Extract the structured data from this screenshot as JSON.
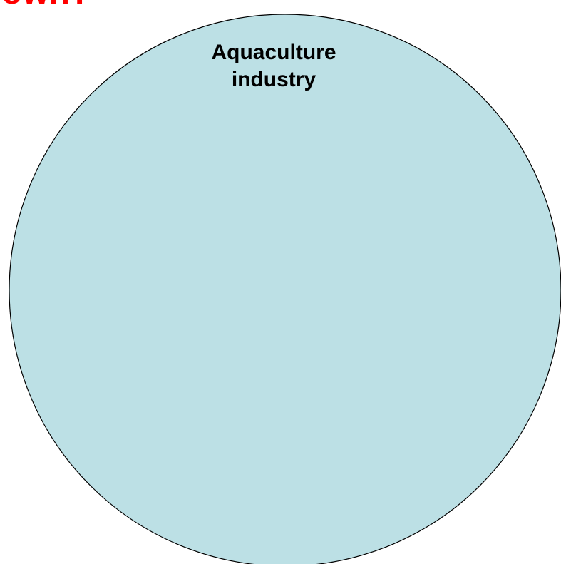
{
  "slide": {
    "clipped_title": "own?",
    "title_color": "#ff0000"
  },
  "diagram": {
    "circle": {
      "label_line_1": "Aquaculture",
      "label_line_2": "industry",
      "fill_color": "#bce0e5",
      "stroke_color": "#000000"
    }
  }
}
